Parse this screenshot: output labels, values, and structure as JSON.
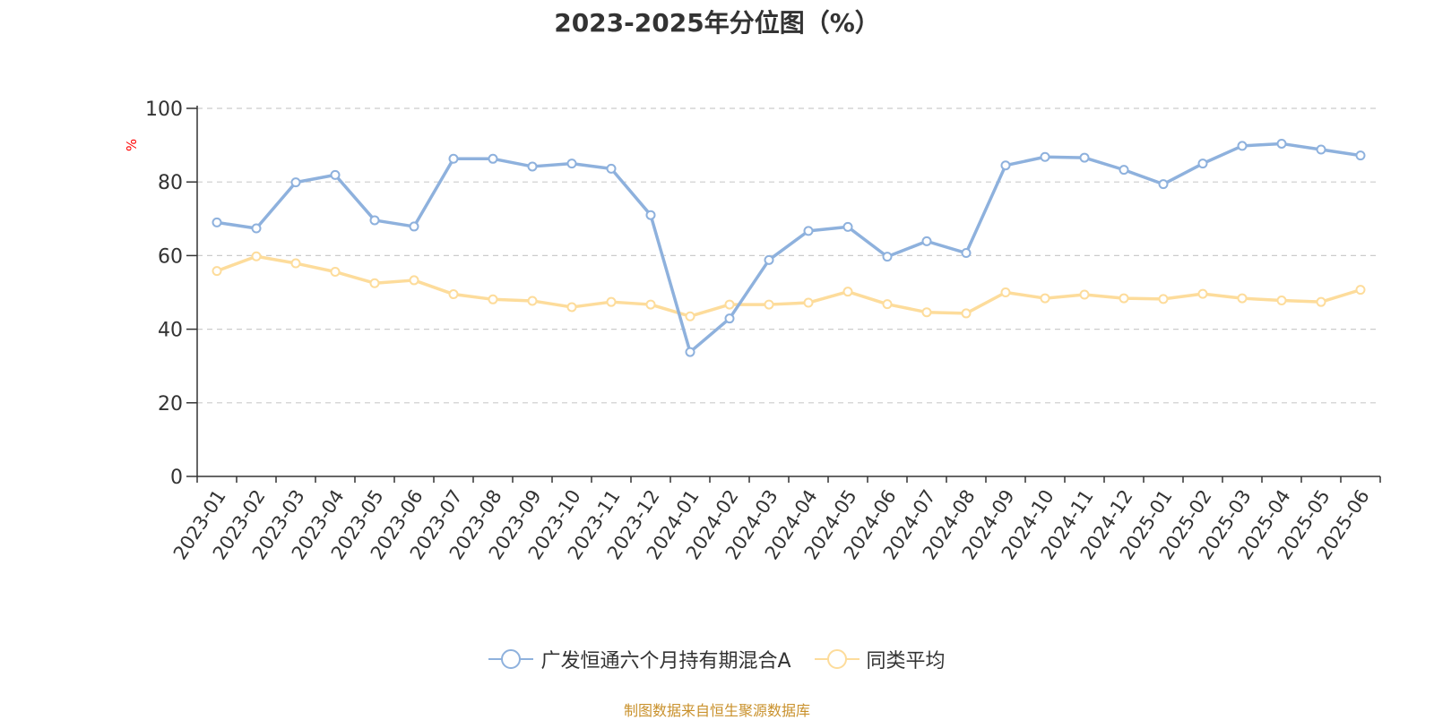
{
  "colors": {
    "series_fund": "#8eb1dd",
    "series_avg": "#fddc9b",
    "axis": "#333333",
    "grid": "#cccccc",
    "unit": "#ff0000",
    "source": "#c9912c"
  },
  "chart_data": {
    "type": "line",
    "title": "2023-2025年分位图（%）",
    "ylabel": "%",
    "xlabel": "",
    "ylim": [
      0,
      100
    ],
    "yticks": [
      0,
      20,
      40,
      60,
      80,
      100
    ],
    "grid": true,
    "legend_position": "bottom",
    "categories": [
      "2023-01",
      "2023-02",
      "2023-03",
      "2023-04",
      "2023-05",
      "2023-06",
      "2023-07",
      "2023-08",
      "2023-09",
      "2023-10",
      "2023-11",
      "2023-12",
      "2024-01",
      "2024-02",
      "2024-03",
      "2024-04",
      "2024-05",
      "2024-06",
      "2024-07",
      "2024-08",
      "2024-09",
      "2024-10",
      "2024-11",
      "2024-12",
      "2025-01",
      "2025-02",
      "2025-03",
      "2025-04",
      "2025-05",
      "2025-06"
    ],
    "series": [
      {
        "name": "广发恒通六个月持有期混合A",
        "values": [
          69.0,
          67.4,
          79.9,
          81.9,
          69.6,
          67.9,
          86.3,
          86.3,
          84.2,
          85.0,
          83.6,
          71.0,
          33.8,
          42.9,
          58.8,
          66.7,
          67.8,
          59.7,
          63.9,
          60.7,
          84.5,
          86.8,
          86.6,
          83.3,
          79.4,
          85.0,
          89.8,
          90.4,
          88.8,
          87.2
        ]
      },
      {
        "name": "同类平均",
        "values": [
          55.8,
          59.8,
          57.9,
          55.6,
          52.5,
          53.3,
          49.5,
          48.1,
          47.7,
          46.0,
          47.4,
          46.7,
          43.5,
          46.7,
          46.7,
          47.2,
          50.2,
          46.8,
          44.6,
          44.3,
          50.0,
          48.4,
          49.4,
          48.4,
          48.2,
          49.6,
          48.4,
          47.8,
          47.4,
          50.7
        ]
      }
    ]
  },
  "legend": {
    "fund_label": "广发恒通六个月持有期混合A",
    "avg_label": "同类平均"
  },
  "footer": {
    "source": "制图数据来自恒生聚源数据库"
  }
}
